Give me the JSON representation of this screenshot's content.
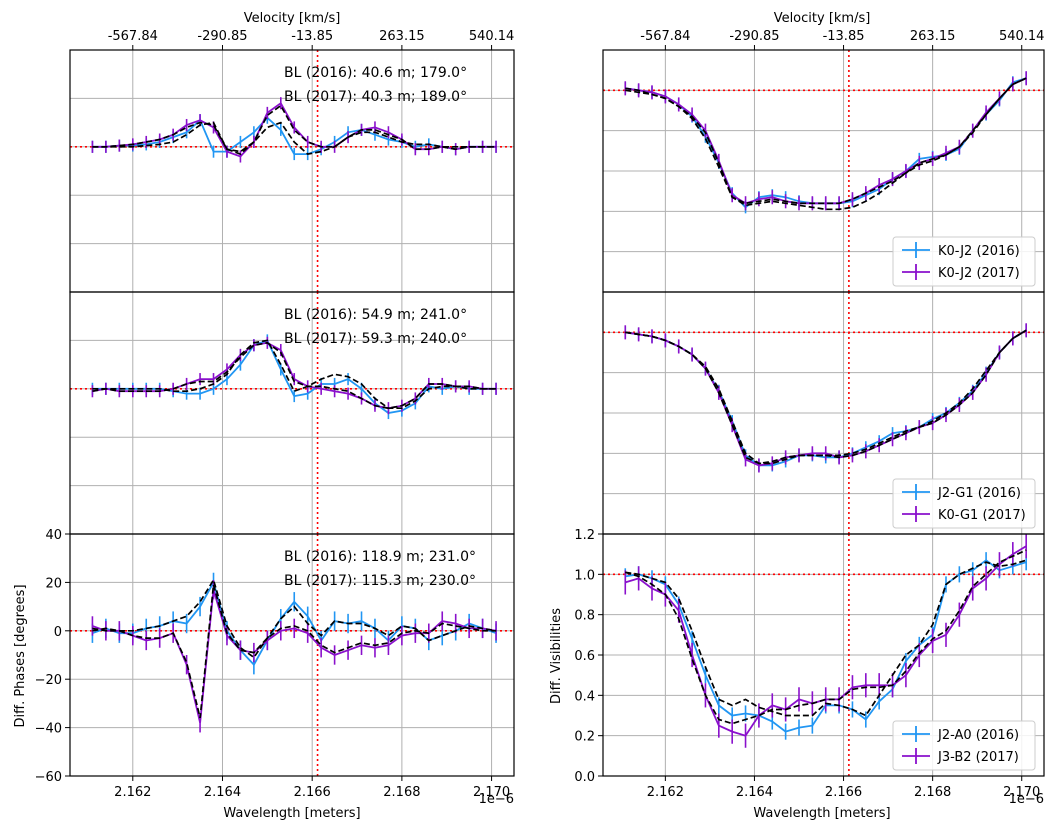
{
  "chart_data": {
    "type": "line",
    "x_axis": {
      "label": "Wavelength [meters]",
      "range": [
        2.1606e-06,
        2.1705e-06
      ],
      "ticks": [
        2.162e-06,
        2.164e-06,
        2.166e-06,
        2.168e-06,
        2.17e-06
      ],
      "tick_labels": [
        "2.162",
        "2.164",
        "2.166",
        "2.168",
        "2.170"
      ],
      "offset_label": "1e−6"
    },
    "top_axis": {
      "label": "Velocity [km/s]",
      "ticks": [
        2.162e-06,
        2.164e-06,
        2.166e-06,
        2.168e-06,
        2.17e-06
      ],
      "tick_labels": [
        "-567.84",
        "-290.85",
        "-13.85",
        "263.15",
        "540.14"
      ]
    },
    "reference_lines": {
      "wavelength": 2.16612e-06,
      "phase": 0,
      "visibility": 1.0,
      "color": "#ff0000"
    },
    "colors": {
      "s2016": "#2196f3",
      "s2017": "#8a10cc",
      "model": "#000000",
      "grid": "#b0b0b0"
    },
    "phase_axis": {
      "label": "Diff. Phases [degrees]",
      "range": [
        -60,
        40
      ],
      "ticks": [
        -60,
        -40,
        -20,
        0,
        20,
        40
      ]
    },
    "vis_axis": {
      "label": "Diff. Visibilities",
      "range": [
        0.0,
        1.2
      ],
      "ticks": [
        0.0,
        0.2,
        0.4,
        0.6,
        0.8,
        1.0,
        1.2
      ],
      "tick_labels": [
        "0.0",
        "0.2",
        "0.4",
        "0.6",
        "0.8",
        "1.0",
        "1.2"
      ]
    },
    "x": [
      2.1611,
      2.1614,
      2.1617,
      2.162,
      2.1623,
      2.1626,
      2.1629,
      2.1632,
      2.1635,
      2.1638,
      2.1641,
      2.1644,
      2.1647,
      2.165,
      2.1653,
      2.1656,
      2.1659,
      2.1662,
      2.1665,
      2.1668,
      2.1671,
      2.1674,
      2.1677,
      2.168,
      2.1683,
      2.1686,
      2.1689,
      2.1692,
      2.1695,
      2.1698,
      2.1701
    ],
    "phase_panels": [
      {
        "bl2016": "BL (2016): 40.6 m; 179.0°",
        "bl2017": "BL (2017): 40.3 m; 189.0°",
        "s2016": [
          0,
          0,
          0.5,
          0.5,
          1,
          2,
          4,
          6,
          11,
          -2,
          -2,
          2,
          6,
          12,
          7,
          -3,
          -3,
          -1,
          2,
          6,
          7,
          5,
          3,
          2,
          0,
          1,
          0,
          -1,
          0,
          0,
          0
        ],
        "s2017": [
          0,
          0,
          0.5,
          1,
          2,
          3,
          5,
          9,
          11,
          8,
          -2,
          -4,
          2,
          14,
          18,
          8,
          2,
          0,
          0,
          4,
          7,
          8,
          6,
          3,
          -1,
          -1,
          0,
          -1,
          0,
          0,
          0
        ],
        "m2016": [
          0,
          0,
          0,
          0,
          0.5,
          1,
          2,
          5,
          9,
          10,
          -1,
          -2,
          2,
          8,
          10,
          2,
          -3,
          -2,
          0,
          4,
          6,
          6,
          4,
          2,
          1,
          1,
          0,
          0,
          0,
          0,
          0
        ],
        "m2017": [
          0,
          0,
          0.5,
          1,
          2,
          3,
          5,
          8,
          10,
          9,
          -1,
          -3,
          2,
          13,
          17,
          7,
          2,
          0,
          0,
          4,
          7,
          7,
          5,
          3,
          -1,
          -1,
          0,
          -1,
          0,
          0,
          0
        ],
        "err2016": 2.5,
        "err2017": 2.5
      },
      {
        "bl2016": "BL (2016): 54.9 m; 241.0°",
        "bl2017": "BL (2017): 59.3 m; 240.0°",
        "s2016": [
          0,
          0,
          0,
          0,
          0,
          0,
          -1,
          -2,
          -2,
          0,
          4,
          10,
          18,
          20,
          8,
          -3,
          -2,
          2,
          2,
          4,
          0,
          -6,
          -10,
          -9,
          -6,
          1,
          0,
          1,
          0,
          0,
          0
        ],
        "s2017": [
          -1,
          0,
          -1,
          -1,
          -1,
          -1,
          0,
          2,
          4,
          4,
          8,
          14,
          18,
          19,
          16,
          4,
          1,
          0,
          -1,
          -2,
          -4,
          -7,
          -8,
          -7,
          -4,
          2,
          2,
          1,
          1,
          0,
          0
        ],
        "m2016": [
          0,
          0,
          0,
          0,
          0,
          0,
          -1,
          -1,
          0,
          2,
          6,
          14,
          19,
          20,
          10,
          -1,
          1,
          4,
          6,
          5,
          2,
          -4,
          -8,
          -8,
          -5,
          0,
          1,
          1,
          0,
          0,
          0
        ],
        "m2017": [
          -1,
          0,
          -1,
          -1,
          -1,
          -1,
          0,
          2,
          3,
          3,
          7,
          13,
          18,
          19,
          15,
          3,
          1,
          1,
          0,
          -1,
          -4,
          -7,
          -8,
          -7,
          -4,
          2,
          2,
          1,
          1,
          0,
          0
        ],
        "err2016": 2.5,
        "err2017": 2.5
      },
      {
        "bl2016": "BL (2016): 118.9 m; 231.0°",
        "bl2017": "BL (2017): 115.3 m; 230.0°",
        "s2016": [
          -1,
          1,
          -1,
          -1,
          1,
          2,
          4,
          3,
          10,
          20,
          0,
          -8,
          -14,
          -4,
          5,
          12,
          6,
          -4,
          4,
          3,
          4,
          1,
          -4,
          2,
          1,
          -4,
          -2,
          0,
          3,
          1,
          -1
        ],
        "s2017": [
          2,
          0,
          0,
          -2,
          -4,
          -3,
          -1,
          -14,
          -38,
          17,
          -2,
          -8,
          -9,
          -4,
          0,
          1,
          -1,
          -7,
          -10,
          -8,
          -6,
          -7,
          -6,
          -2,
          -1,
          -1,
          4,
          3,
          1,
          1,
          0
        ],
        "m2016": [
          0,
          1,
          0,
          0,
          1,
          2,
          4,
          6,
          12,
          21,
          2,
          -7,
          -11,
          -3,
          5,
          10,
          3,
          -2,
          4,
          3,
          3,
          1,
          -2,
          2,
          1,
          -4,
          -2,
          0,
          2,
          1,
          0
        ],
        "m2017": [
          1,
          0,
          0,
          -2,
          -3,
          -3,
          -1,
          -13,
          -36,
          19,
          -1,
          -8,
          -9,
          -3,
          1,
          2,
          0,
          -6,
          -9,
          -7,
          -5,
          -6,
          -5,
          -1,
          0,
          -1,
          3,
          2,
          1,
          0,
          0
        ],
        "err2016": 4,
        "err2017": 4
      }
    ],
    "vis_panels": [
      {
        "legend": [
          "K0-J2 (2016)",
          "K0-J2 (2017)"
        ],
        "s2016": [
          1.01,
          1.0,
          0.99,
          0.97,
          0.93,
          0.87,
          0.77,
          0.64,
          0.49,
          0.42,
          0.47,
          0.48,
          0.47,
          0.45,
          0.44,
          0.44,
          0.44,
          0.45,
          0.48,
          0.51,
          0.56,
          0.6,
          0.66,
          0.67,
          0.68,
          0.71,
          0.8,
          0.88,
          0.95,
          1.04,
          1.06
        ],
        "s2017": [
          1.01,
          1.0,
          0.99,
          0.97,
          0.93,
          0.88,
          0.8,
          0.65,
          0.48,
          0.44,
          0.46,
          0.47,
          0.45,
          0.44,
          0.44,
          0.44,
          0.44,
          0.46,
          0.49,
          0.53,
          0.56,
          0.6,
          0.64,
          0.66,
          0.69,
          0.72,
          0.8,
          0.89,
          0.96,
          1.03,
          1.06
        ],
        "m2016": [
          1.01,
          1.0,
          0.98,
          0.96,
          0.92,
          0.86,
          0.76,
          0.62,
          0.47,
          0.43,
          0.44,
          0.45,
          0.44,
          0.43,
          0.42,
          0.41,
          0.41,
          0.42,
          0.45,
          0.49,
          0.54,
          0.59,
          0.64,
          0.66,
          0.68,
          0.72,
          0.8,
          0.88,
          0.96,
          1.03,
          1.06
        ],
        "m2017": [
          1.0,
          0.99,
          0.98,
          0.96,
          0.92,
          0.87,
          0.79,
          0.64,
          0.47,
          0.44,
          0.45,
          0.46,
          0.45,
          0.44,
          0.44,
          0.44,
          0.44,
          0.46,
          0.49,
          0.52,
          0.55,
          0.59,
          0.63,
          0.65,
          0.68,
          0.72,
          0.79,
          0.88,
          0.96,
          1.03,
          1.06
        ],
        "err2016": 0.03,
        "err2017": 0.035
      },
      {
        "legend": [
          "J2-G1 (2016)",
          "K0-G1 (2017)"
        ],
        "s2016": [
          1.0,
          0.99,
          0.98,
          0.96,
          0.93,
          0.89,
          0.82,
          0.71,
          0.56,
          0.39,
          0.34,
          0.34,
          0.36,
          0.39,
          0.39,
          0.38,
          0.38,
          0.4,
          0.43,
          0.46,
          0.5,
          0.51,
          0.53,
          0.57,
          0.6,
          0.65,
          0.71,
          0.8,
          0.9,
          0.97,
          1.01
        ],
        "s2017": [
          1.0,
          0.99,
          0.98,
          0.96,
          0.93,
          0.89,
          0.82,
          0.7,
          0.54,
          0.37,
          0.34,
          0.35,
          0.38,
          0.39,
          0.4,
          0.4,
          0.38,
          0.39,
          0.41,
          0.44,
          0.47,
          0.5,
          0.53,
          0.55,
          0.59,
          0.64,
          0.7,
          0.79,
          0.9,
          0.97,
          1.01
        ],
        "m2016": [
          1.0,
          0.99,
          0.98,
          0.96,
          0.93,
          0.89,
          0.83,
          0.72,
          0.56,
          0.4,
          0.35,
          0.35,
          0.37,
          0.39,
          0.39,
          0.39,
          0.39,
          0.4,
          0.42,
          0.45,
          0.48,
          0.51,
          0.53,
          0.56,
          0.6,
          0.65,
          0.72,
          0.81,
          0.9,
          0.97,
          1.01
        ],
        "m2017": [
          1.0,
          0.99,
          0.98,
          0.96,
          0.93,
          0.89,
          0.82,
          0.7,
          0.54,
          0.38,
          0.35,
          0.36,
          0.38,
          0.39,
          0.39,
          0.39,
          0.38,
          0.39,
          0.41,
          0.44,
          0.47,
          0.5,
          0.53,
          0.55,
          0.59,
          0.64,
          0.7,
          0.79,
          0.9,
          0.97,
          1.01
        ],
        "err2016": 0.03,
        "err2017": 0.035
      },
      {
        "legend": [
          "J2-A0 (2016)",
          "J3-B2 (2017)"
        ],
        "s2016": [
          0.99,
          1.0,
          0.98,
          0.95,
          0.85,
          0.68,
          0.5,
          0.35,
          0.3,
          0.31,
          0.3,
          0.27,
          0.22,
          0.24,
          0.25,
          0.35,
          0.35,
          0.33,
          0.28,
          0.37,
          0.43,
          0.57,
          0.65,
          0.7,
          0.95,
          1.0,
          1.02,
          1.07,
          1.02,
          1.04,
          1.06
        ],
        "s2017": [
          0.96,
          0.98,
          0.93,
          0.9,
          0.82,
          0.6,
          0.4,
          0.25,
          0.22,
          0.2,
          0.3,
          0.35,
          0.33,
          0.38,
          0.36,
          0.38,
          0.38,
          0.44,
          0.45,
          0.45,
          0.45,
          0.5,
          0.6,
          0.67,
          0.7,
          0.8,
          0.93,
          0.98,
          1.05,
          1.1,
          1.14
        ],
        "m2016": [
          1.01,
          1.0,
          0.98,
          0.96,
          0.88,
          0.72,
          0.54,
          0.38,
          0.35,
          0.38,
          0.34,
          0.32,
          0.3,
          0.3,
          0.3,
          0.36,
          0.35,
          0.33,
          0.3,
          0.4,
          0.5,
          0.6,
          0.65,
          0.75,
          0.95,
          1.0,
          1.03,
          1.06,
          1.04,
          1.05,
          1.07
        ],
        "m2017": [
          1.01,
          0.99,
          0.95,
          0.9,
          0.78,
          0.58,
          0.4,
          0.28,
          0.26,
          0.28,
          0.3,
          0.33,
          0.33,
          0.35,
          0.36,
          0.38,
          0.38,
          0.43,
          0.44,
          0.44,
          0.45,
          0.52,
          0.61,
          0.68,
          0.72,
          0.82,
          0.94,
          1.0,
          1.06,
          1.09,
          1.12
        ],
        "err2016": 0.04,
        "err2017": 0.06
      }
    ]
  }
}
